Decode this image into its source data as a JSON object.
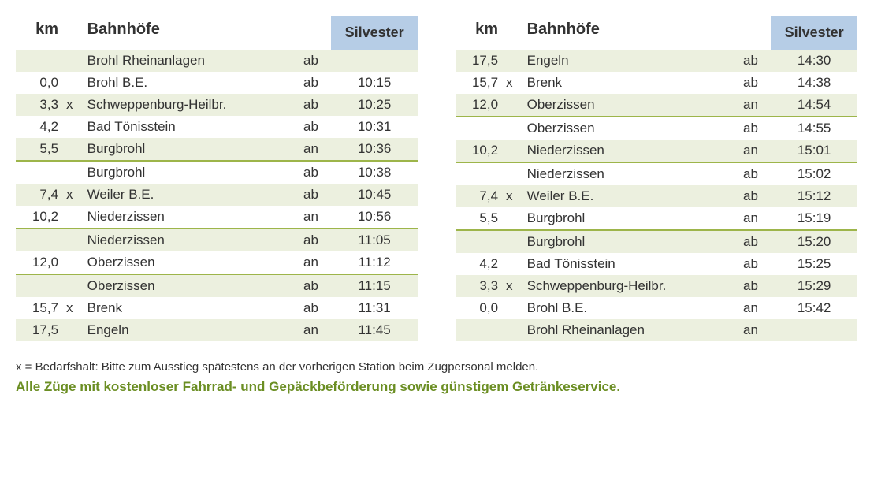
{
  "colors": {
    "header_bg": "#b6cde6",
    "row_shade": "#ecf0df",
    "separator": "#9db54a",
    "text": "#333333",
    "promo": "#6b8e23",
    "background": "#ffffff"
  },
  "typography": {
    "header_fontsize_pt": 15,
    "body_fontsize_pt": 13,
    "footnote_fontsize_pt": 11,
    "promo_fontsize_pt": 13,
    "font_family": "Verdana"
  },
  "headers": {
    "km": "km",
    "station": "Bahnhöfe",
    "time": "Silvester"
  },
  "left_table": {
    "rows": [
      {
        "km": "",
        "x": "",
        "station": "Brohl Rheinanlagen",
        "mode": "ab",
        "time": "",
        "shaded": true,
        "sep": false
      },
      {
        "km": "0,0",
        "x": "",
        "station": "Brohl B.E.",
        "mode": "ab",
        "time": "10:15",
        "shaded": false,
        "sep": false
      },
      {
        "km": "3,3",
        "x": "x",
        "station": "Schweppenburg-Heilbr.",
        "mode": "ab",
        "time": "10:25",
        "shaded": true,
        "sep": false
      },
      {
        "km": "4,2",
        "x": "",
        "station": "Bad Tönisstein",
        "mode": "ab",
        "time": "10:31",
        "shaded": false,
        "sep": false
      },
      {
        "km": "5,5",
        "x": "",
        "station": "Burgbrohl",
        "mode": "an",
        "time": "10:36",
        "shaded": true,
        "sep": true
      },
      {
        "km": "",
        "x": "",
        "station": "Burgbrohl",
        "mode": "ab",
        "time": "10:38",
        "shaded": false,
        "sep": false
      },
      {
        "km": "7,4",
        "x": "x",
        "station": "Weiler B.E.",
        "mode": "ab",
        "time": "10:45",
        "shaded": true,
        "sep": false
      },
      {
        "km": "10,2",
        "x": "",
        "station": "Niederzissen",
        "mode": "an",
        "time": "10:56",
        "shaded": false,
        "sep": true
      },
      {
        "km": "",
        "x": "",
        "station": "Niederzissen",
        "mode": "ab",
        "time": "11:05",
        "shaded": true,
        "sep": false
      },
      {
        "km": "12,0",
        "x": "",
        "station": "Oberzissen",
        "mode": "an",
        "time": "11:12",
        "shaded": false,
        "sep": true
      },
      {
        "km": "",
        "x": "",
        "station": "Oberzissen",
        "mode": "ab",
        "time": "11:15",
        "shaded": true,
        "sep": false
      },
      {
        "km": "15,7",
        "x": "x",
        "station": "Brenk",
        "mode": "ab",
        "time": "11:31",
        "shaded": false,
        "sep": false
      },
      {
        "km": "17,5",
        "x": "",
        "station": "Engeln",
        "mode": "an",
        "time": "11:45",
        "shaded": true,
        "sep": false
      }
    ]
  },
  "right_table": {
    "rows": [
      {
        "km": "17,5",
        "x": "",
        "station": "Engeln",
        "mode": "ab",
        "time": "14:30",
        "shaded": true,
        "sep": false
      },
      {
        "km": "15,7",
        "x": "x",
        "station": "Brenk",
        "mode": "ab",
        "time": "14:38",
        "shaded": false,
        "sep": false
      },
      {
        "km": "12,0",
        "x": "",
        "station": "Oberzissen",
        "mode": "an",
        "time": "14:54",
        "shaded": true,
        "sep": true
      },
      {
        "km": "",
        "x": "",
        "station": "Oberzissen",
        "mode": "ab",
        "time": "14:55",
        "shaded": false,
        "sep": false
      },
      {
        "km": "10,2",
        "x": "",
        "station": "Niederzissen",
        "mode": "an",
        "time": "15:01",
        "shaded": true,
        "sep": true
      },
      {
        "km": "",
        "x": "",
        "station": "Niederzissen",
        "mode": "ab",
        "time": "15:02",
        "shaded": false,
        "sep": false
      },
      {
        "km": "7,4",
        "x": "x",
        "station": "Weiler B.E.",
        "mode": "ab",
        "time": "15:12",
        "shaded": true,
        "sep": false
      },
      {
        "km": "5,5",
        "x": "",
        "station": "Burgbrohl",
        "mode": "an",
        "time": "15:19",
        "shaded": false,
        "sep": true
      },
      {
        "km": "",
        "x": "",
        "station": "Burgbrohl",
        "mode": "ab",
        "time": "15:20",
        "shaded": true,
        "sep": false
      },
      {
        "km": "4,2",
        "x": "",
        "station": "Bad Tönisstein",
        "mode": "ab",
        "time": "15:25",
        "shaded": false,
        "sep": false
      },
      {
        "km": "3,3",
        "x": "x",
        "station": "Schweppenburg-Heilbr.",
        "mode": "ab",
        "time": "15:29",
        "shaded": true,
        "sep": false
      },
      {
        "km": "0,0",
        "x": "",
        "station": "Brohl B.E.",
        "mode": "an",
        "time": "15:42",
        "shaded": false,
        "sep": false
      },
      {
        "km": "",
        "x": "",
        "station": "Brohl Rheinanlagen",
        "mode": "an",
        "time": "",
        "shaded": true,
        "sep": false
      }
    ]
  },
  "footnote": "x = Bedarfshalt: Bitte zum Ausstieg spätestens an der vorherigen Station beim Zugpersonal melden.",
  "promo": "Alle Züge mit kostenloser Fahrrad- und Gepäckbeförderung sowie günstigem Getränkeservice."
}
